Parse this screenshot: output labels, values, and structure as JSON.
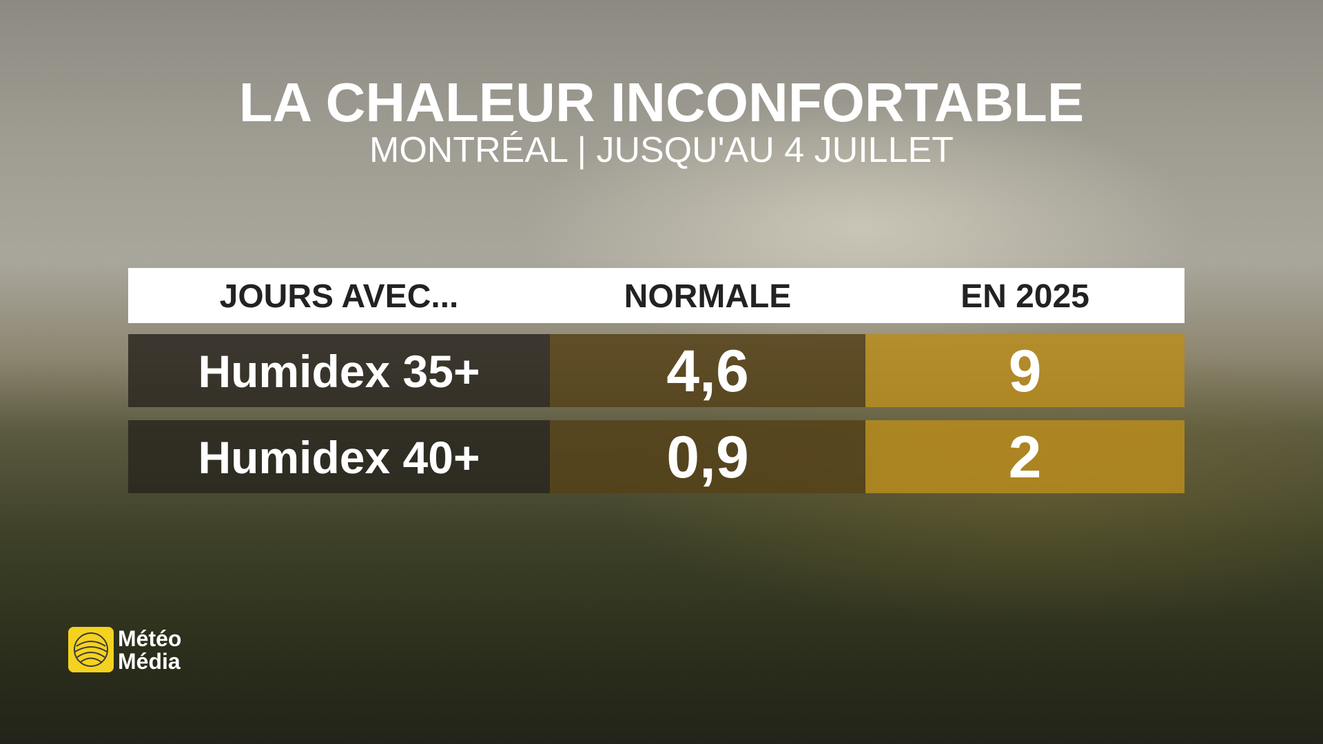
{
  "header": {
    "title": "LA CHALEUR INCONFORTABLE",
    "subtitle": "MONTRÉAL | JUSQU'AU 4 JUILLET"
  },
  "table": {
    "columns": [
      "JOURS AVEC...",
      "NORMALE",
      "EN 2025"
    ],
    "rows": [
      [
        "Humidex 35+",
        "4,6",
        "9"
      ],
      [
        "Humidex 40+",
        "0,9",
        "2"
      ]
    ]
  },
  "logo": {
    "line1": "Météo",
    "line2": "Média"
  }
}
